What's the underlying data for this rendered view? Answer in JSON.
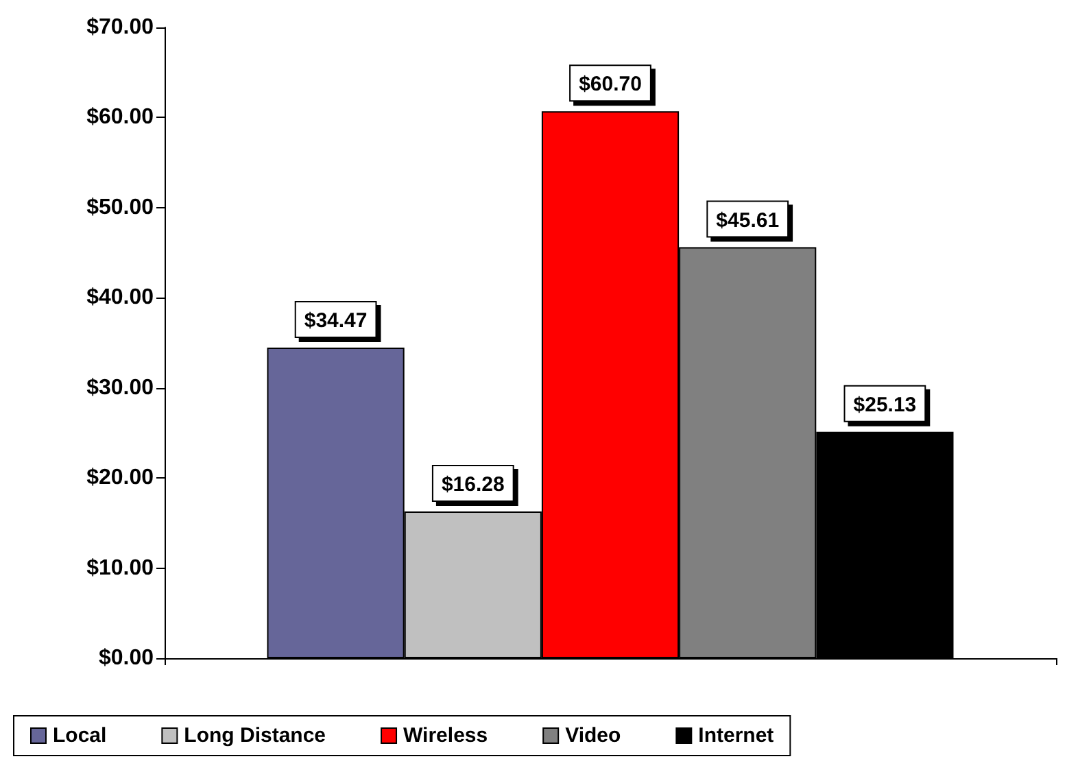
{
  "chart_data": {
    "type": "bar",
    "categories": [
      null
    ],
    "series": [
      {
        "name": "Local",
        "color": "#666699",
        "values": [
          34.47
        ],
        "value_labels": [
          "$34.47"
        ]
      },
      {
        "name": "Long Distance",
        "color": "#c0c0c0",
        "values": [
          16.28
        ],
        "value_labels": [
          "$16.28"
        ]
      },
      {
        "name": "Wireless",
        "color": "#ff0000",
        "values": [
          60.7
        ],
        "value_labels": [
          "$60.70"
        ]
      },
      {
        "name": "Video",
        "color": "#808080",
        "values": [
          45.61
        ],
        "value_labels": [
          "$45.61"
        ]
      },
      {
        "name": "Internet",
        "color": "#000000",
        "values": [
          25.13
        ],
        "value_labels": [
          "$25.13"
        ]
      }
    ],
    "ylim": [
      0,
      70
    ],
    "yticks": [
      {
        "value": 0,
        "label": "$0.00"
      },
      {
        "value": 10,
        "label": "$10.00"
      },
      {
        "value": 20,
        "label": "$20.00"
      },
      {
        "value": 30,
        "label": "$30.00"
      },
      {
        "value": 40,
        "label": "$40.00"
      },
      {
        "value": 50,
        "label": "$50.00"
      },
      {
        "value": 60,
        "label": "$60.00"
      },
      {
        "value": 70,
        "label": "$70.00"
      }
    ],
    "legend": "bottom"
  }
}
